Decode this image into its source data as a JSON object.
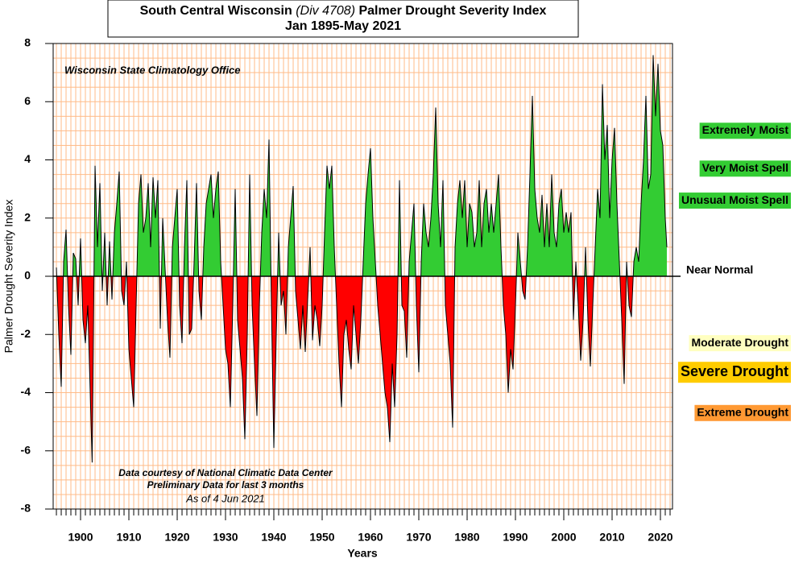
{
  "chart_data": {
    "type": "area",
    "title": [
      "South Central Wisconsin ",
      "(Div 4708)",
      " Palmer Drought Severity Index"
    ],
    "subtitle": "Jan 1895-May 2021",
    "xlabel": "Years",
    "ylabel": "Palmer Drought Severity Index",
    "xlim": [
      1894.33,
      2022.5
    ],
    "ylim": [
      -8,
      8
    ],
    "xticks": [
      1900,
      1910,
      1920,
      1930,
      1940,
      1950,
      1960,
      1970,
      1980,
      1990,
      2000,
      2010,
      2020
    ],
    "yticks": [
      -8,
      -6,
      -4,
      -2,
      0,
      2,
      4,
      6,
      8
    ],
    "grid": {
      "x_step": 1,
      "y_step": 0.5,
      "color": "#ffbb88"
    },
    "colors": {
      "positive": "#33cc33",
      "negative": "#ff0000",
      "line": "#000000"
    },
    "annotations": [
      {
        "text": "Wisconsin State Climatology Office",
        "style": "bold-italic"
      },
      {
        "text": "Data courtesy of National Climatic Data Center",
        "style": "bold-italic"
      },
      {
        "text": "Preliminary Data for last 3 months",
        "style": "bold-italic"
      },
      {
        "text": "As of 4 Jun 2021",
        "style": "italic"
      }
    ],
    "categories_legend": [
      {
        "text": "Extremely Moist",
        "color": "#33cc33",
        "y": 5
      },
      {
        "text": "Very Moist Spell",
        "color": "#33cc33",
        "y": 3.7
      },
      {
        "text": "Unusual Moist Spell",
        "color": "#33cc33",
        "y": 2.6
      },
      {
        "text": "Near Normal",
        "color": null,
        "y": 0.2
      },
      {
        "text": "Moderate Drought",
        "color": "#ffffc0",
        "y": -2.3
      },
      {
        "text": "Severe Drought",
        "color": "#ffcc00",
        "y": -3.3
      },
      {
        "text": "Extreme Drought",
        "color": "#ff9933",
        "y": -4.7
      }
    ],
    "x": [
      1895.0,
      1895.5,
      1896,
      1896.5,
      1897,
      1897.5,
      1898,
      1898.5,
      1899,
      1899.5,
      1900,
      1900.5,
      1901,
      1901.5,
      1902,
      1902.4,
      1903,
      1903.5,
      1904,
      1904.5,
      1905,
      1905.5,
      1906,
      1906.5,
      1907,
      1907.5,
      1908,
      1908.5,
      1909,
      1909.5,
      1910,
      1910.5,
      1911,
      1911.5,
      1912,
      1912.5,
      1913,
      1913.5,
      1914,
      1914.5,
      1915,
      1915.5,
      1916,
      1916.5,
      1917,
      1918,
      1918.5,
      1919,
      1920,
      1920.5,
      1921,
      1921.5,
      1922,
      1922.5,
      1923,
      1923.5,
      1924,
      1924.5,
      1925,
      1925.5,
      1926,
      1927,
      1927.5,
      1928,
      1928.5,
      1929,
      1929.5,
      1930,
      1930.5,
      1931,
      1931.5,
      1932,
      1932.5,
      1933,
      1933.5,
      1934,
      1934.5,
      1935,
      1935.5,
      1936,
      1936.5,
      1937,
      1937.5,
      1938,
      1938.5,
      1939,
      1939.5,
      1940,
      1940.5,
      1941,
      1941.5,
      1942,
      1942.5,
      1943,
      1944,
      1944.5,
      1945,
      1945.5,
      1946,
      1946.5,
      1947,
      1947.5,
      1948,
      1948.5,
      1949,
      1949.5,
      1950,
      1950.5,
      1951,
      1951.5,
      1952,
      1952.5,
      1953,
      1953.5,
      1954,
      1954.5,
      1955,
      1955.5,
      1956,
      1956.5,
      1957,
      1957.5,
      1958,
      1958.5,
      1959,
      1959.5,
      1960,
      1960.5,
      1961,
      1961.5,
      1962,
      1962.5,
      1963,
      1963.5,
      1964,
      1964.5,
      1965,
      1965.5,
      1966,
      1966.5,
      1967,
      1967.5,
      1968,
      1968.5,
      1969,
      1969.5,
      1970,
      1970.5,
      1971,
      1971.5,
      1972,
      1972.5,
      1973,
      1973.5,
      1974,
      1974.5,
      1975,
      1975.5,
      1976,
      1976.5,
      1977,
      1977.5,
      1978,
      1978.5,
      1979,
      1979.5,
      1980,
      1980.5,
      1981,
      1981.5,
      1982,
      1982.5,
      1983,
      1983.5,
      1984,
      1984.5,
      1985,
      1985.5,
      1986,
      1986.5,
      1987,
      1987.5,
      1988,
      1988.5,
      1989,
      1989.5,
      1990,
      1990.5,
      1991,
      1991.5,
      1992,
      1992.5,
      1993,
      1993.5,
      1994,
      1994.5,
      1995,
      1995.5,
      1996,
      1996.5,
      1997,
      1997.5,
      1998,
      1998.5,
      1999,
      1999.5,
      2000,
      2000.5,
      2001,
      2001.5,
      2002,
      2002.5,
      2003,
      2003.5,
      2004,
      2004.5,
      2005,
      2005.5,
      2006,
      2006.5,
      2007,
      2007.5,
      2008,
      2008.5,
      2009,
      2009.5,
      2010,
      2010.5,
      2011,
      2011.5,
      2012,
      2012.5,
      2013,
      2013.5,
      2014,
      2014.5,
      2015,
      2015.5,
      2016,
      2016.5,
      2017,
      2017.5,
      2018,
      2018.5,
      2019,
      2019.5,
      2020,
      2020.5,
      2021.0,
      2021.33
    ],
    "values": [
      0.3,
      -2,
      -3.8,
      0.5,
      1.6,
      -1,
      -2.7,
      0.8,
      0.6,
      -1,
      1.3,
      -1.5,
      -2.3,
      -1,
      -4,
      -6.4,
      3.8,
      1,
      3.2,
      -0.5,
      1.5,
      -1,
      1.2,
      -0.8,
      1.5,
      2.5,
      3.6,
      -0.5,
      -1,
      0.5,
      -2.5,
      -3.5,
      -4.5,
      -1,
      2.5,
      3.5,
      1.5,
      2,
      3.2,
      1,
      3.4,
      2,
      3.3,
      -1.8,
      2,
      -1.5,
      -2.8,
      1,
      3.0,
      -1,
      -2.3,
      1,
      3.3,
      -2,
      -1.8,
      0.5,
      3.2,
      -0.5,
      -1.5,
      1,
      2.5,
      3.5,
      2,
      3.0,
      3.6,
      0.5,
      -1,
      -2.5,
      -3,
      -4.5,
      -1,
      3.0,
      -1.5,
      -2.5,
      -3.5,
      -5.6,
      -2,
      3.5,
      -1,
      -3,
      -4.8,
      -1,
      1.5,
      3.0,
      2,
      4.7,
      -1,
      -5.9,
      -2,
      1.5,
      -1,
      -0.5,
      -2,
      1,
      3.1,
      -0.5,
      -1.5,
      -2.5,
      -1,
      -2.6,
      -0.8,
      1,
      -2.2,
      -1,
      -1.5,
      -2.4,
      -1,
      1.5,
      3.8,
      3,
      3.8,
      1,
      -1,
      -3,
      -4.5,
      -2,
      -1.5,
      -2.5,
      -3.2,
      -1,
      -2,
      -3,
      -1.5,
      0.5,
      2.5,
      3.5,
      4.4,
      2,
      0.5,
      -1,
      -2,
      -3,
      -4,
      -4.5,
      -5.7,
      -3,
      -4.5,
      -2,
      3.3,
      -1,
      -1.2,
      -2.8,
      0.5,
      1.5,
      2.5,
      -1,
      -3.3,
      0.5,
      2.5,
      1.5,
      1,
      2,
      3.5,
      5.8,
      2.5,
      1,
      3.3,
      -1,
      -2,
      -3,
      -5.2,
      1,
      2.5,
      3.3,
      2,
      3.3,
      1,
      2.5,
      2.2,
      1,
      1.5,
      3.3,
      1,
      2.5,
      3.0,
      1.5,
      2.5,
      1.5,
      2.5,
      3.5,
      1,
      -1,
      -2,
      -4,
      -2.5,
      -3.2,
      -1,
      1.5,
      0.5,
      -0.5,
      -0.8,
      1,
      3.5,
      6.2,
      3,
      2,
      1.5,
      2.8,
      1,
      2.5,
      1,
      3.5,
      1.5,
      1,
      2.5,
      3.0,
      1.5,
      2.2,
      1.5,
      2.2,
      -1.5,
      0.5,
      -1,
      -2.9,
      -1.5,
      1,
      -1.5,
      -3.1,
      -1,
      1,
      3,
      2,
      6.6,
      4,
      5.2,
      2,
      4,
      5.1,
      2.5,
      0.5,
      -1.5,
      -3.7,
      0.5,
      -1,
      -1.4,
      0.5,
      1,
      0.5,
      2.5,
      4,
      6.2,
      3,
      3.5,
      7.6,
      5.5,
      7.3,
      5,
      4.5,
      2,
      1
    ]
  }
}
